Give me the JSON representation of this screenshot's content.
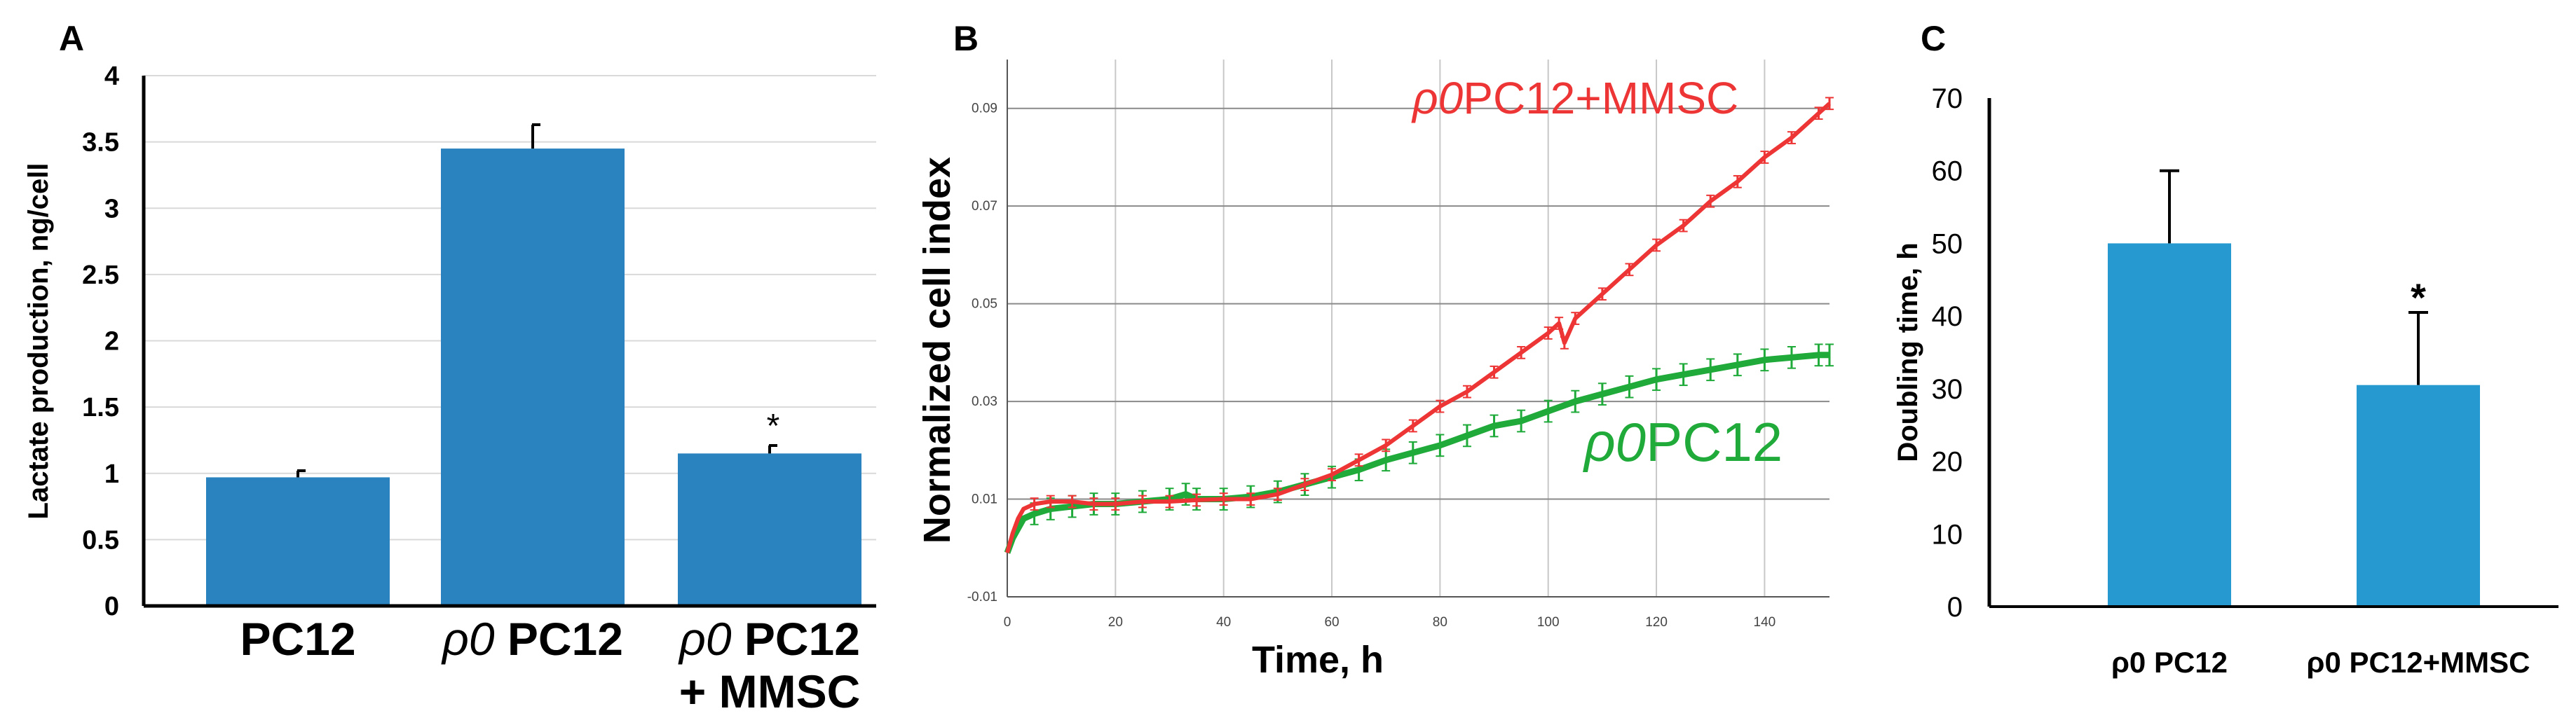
{
  "panels": {
    "A": {
      "letter": "A"
    },
    "B": {
      "letter": "B"
    },
    "C": {
      "letter": "C"
    }
  },
  "chart_data": [
    {
      "panel": "A",
      "type": "bar",
      "ylabel": "Lactate production, ng/cell",
      "ylim": [
        0,
        4
      ],
      "yticks": [
        "0",
        "0.5",
        "1",
        "1.5",
        "2",
        "2.5",
        "3",
        "3.5",
        "4"
      ],
      "categories": [
        {
          "prefix": "",
          "label": "PC12",
          "line2": ""
        },
        {
          "prefix": "ρ0",
          "label": " PC12",
          "line2": ""
        },
        {
          "prefix": "ρ0",
          "label": " PC12",
          "line2": "+ MMSC"
        }
      ],
      "values": [
        0.97,
        3.45,
        1.15
      ],
      "errors": [
        0.05,
        0.18,
        0.06
      ],
      "annotations": [
        "",
        "",
        "*"
      ],
      "color": "#2a82bf"
    },
    {
      "panel": "B",
      "type": "line",
      "xlabel": "Time, h",
      "ylabel": "Normalized cell index",
      "xlim": [
        0,
        152
      ],
      "ylim": [
        -0.01,
        0.1
      ],
      "xticks": [
        "0",
        "20",
        "40",
        "60",
        "80",
        "100",
        "120",
        "140"
      ],
      "yticks": [
        "-0.01",
        "0.01",
        "0.03",
        "0.05",
        "0.07",
        "0.09"
      ],
      "series": [
        {
          "name": "PC12+MMSC",
          "prefix": "ρ0",
          "color": "#ee3535",
          "x": [
            0,
            1,
            2,
            3,
            5,
            8,
            12,
            16,
            20,
            25,
            30,
            35,
            40,
            45,
            50,
            55,
            60,
            65,
            70,
            75,
            80,
            85,
            90,
            95,
            100,
            102,
            103,
            105,
            110,
            115,
            120,
            125,
            130,
            135,
            140,
            145,
            150,
            152
          ],
          "y": [
            -0.001,
            0.003,
            0.006,
            0.008,
            0.009,
            0.0095,
            0.0095,
            0.009,
            0.009,
            0.0095,
            0.0095,
            0.0098,
            0.01,
            0.01,
            0.011,
            0.013,
            0.015,
            0.018,
            0.021,
            0.025,
            0.029,
            0.032,
            0.036,
            0.04,
            0.044,
            0.046,
            0.042,
            0.047,
            0.052,
            0.057,
            0.062,
            0.066,
            0.071,
            0.075,
            0.08,
            0.084,
            0.089,
            0.091
          ],
          "error": 0.0012
        },
        {
          "name": "PC12",
          "prefix": "ρ0",
          "color": "#1faa3a",
          "x": [
            0,
            1,
            2,
            3,
            5,
            8,
            12,
            16,
            20,
            25,
            30,
            33,
            35,
            40,
            45,
            50,
            55,
            60,
            65,
            70,
            75,
            80,
            85,
            90,
            95,
            100,
            105,
            110,
            115,
            120,
            125,
            130,
            135,
            140,
            145,
            150,
            152
          ],
          "y": [
            -0.001,
            0.002,
            0.004,
            0.006,
            0.007,
            0.008,
            0.0085,
            0.009,
            0.009,
            0.0095,
            0.01,
            0.011,
            0.01,
            0.01,
            0.0105,
            0.0115,
            0.013,
            0.0145,
            0.016,
            0.018,
            0.0195,
            0.021,
            0.023,
            0.025,
            0.026,
            0.028,
            0.03,
            0.0315,
            0.033,
            0.0345,
            0.0355,
            0.0365,
            0.0375,
            0.0385,
            0.039,
            0.0395,
            0.0395
          ],
          "error": 0.0022
        }
      ]
    },
    {
      "panel": "C",
      "type": "bar",
      "ylabel": "Doubling time, h",
      "ylim": [
        0,
        70
      ],
      "yticks": [
        "0",
        "10",
        "20",
        "30",
        "40",
        "50",
        "60",
        "70"
      ],
      "categories": [
        "ρ0 PC12",
        "ρ0 PC12+MMSC"
      ],
      "values": [
        50,
        30.5
      ],
      "errors": [
        10,
        10
      ],
      "annotations": [
        "",
        "*"
      ],
      "color": "#2699d0"
    }
  ]
}
